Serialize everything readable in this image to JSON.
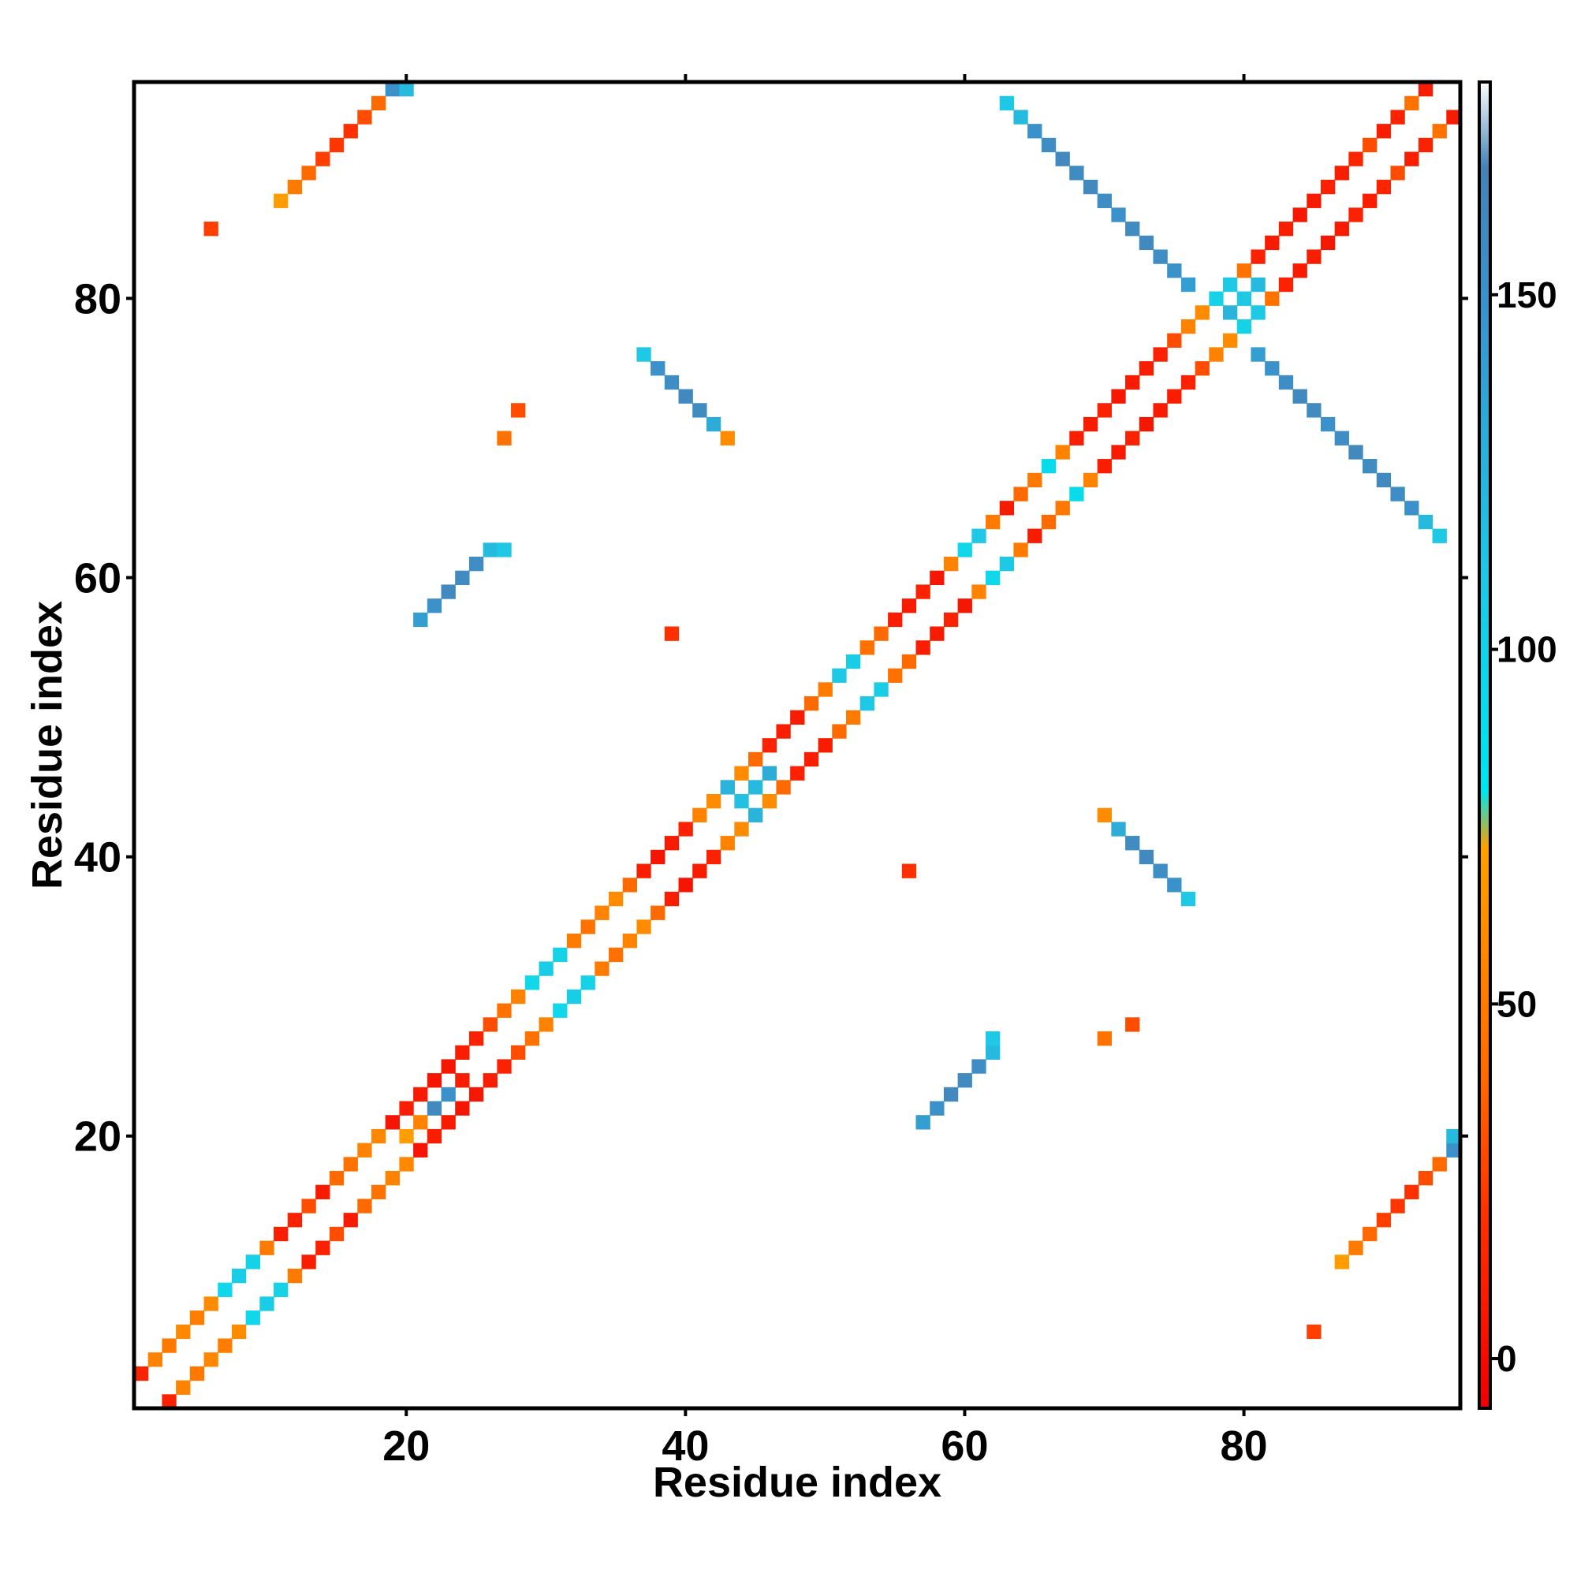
{
  "chart_data": {
    "type": "heatmap",
    "title": "",
    "xlabel": "Residue index",
    "ylabel": "Residue index",
    "xlim": [
      0.5,
      95.5
    ],
    "ylim": [
      0.5,
      95.5
    ],
    "x_ticks": [
      20,
      40,
      60,
      80
    ],
    "y_ticks": [
      20,
      40,
      60,
      80
    ],
    "colorbar": {
      "range": [
        -7,
        180
      ],
      "ticks": [
        0,
        50,
        100,
        150
      ],
      "stops": [
        {
          "value": -7,
          "color": "#ee0000"
        },
        {
          "value": 20,
          "color": "#ff3000"
        },
        {
          "value": 40,
          "color": "#ff6a00"
        },
        {
          "value": 72,
          "color": "#ffa000"
        },
        {
          "value": 80,
          "color": "#00e5ee"
        },
        {
          "value": 110,
          "color": "#1fc8e4"
        },
        {
          "value": 148,
          "color": "#3a93cc"
        },
        {
          "value": 168,
          "color": "#4682b4"
        },
        {
          "value": 180,
          "color": "#ffffff"
        }
      ]
    },
    "grid": false,
    "legend": "colorbar right",
    "cells": [
      [
        1,
        1,
        null
      ],
      [
        2,
        2,
        null
      ],
      [
        3,
        3,
        null
      ],
      [
        4,
        4,
        null
      ],
      [
        5,
        5,
        null
      ],
      [
        6,
        6,
        null
      ],
      [
        7,
        7,
        null
      ],
      [
        8,
        8,
        null
      ],
      [
        9,
        9,
        null
      ],
      [
        10,
        10,
        null
      ],
      [
        1,
        3,
        12
      ],
      [
        3,
        1,
        12
      ],
      [
        2,
        4,
        55
      ],
      [
        4,
        2,
        55
      ],
      [
        3,
        5,
        48
      ],
      [
        5,
        3,
        48
      ],
      [
        4,
        6,
        58
      ],
      [
        6,
        4,
        58
      ],
      [
        5,
        7,
        52
      ],
      [
        7,
        5,
        52
      ],
      [
        6,
        8,
        60
      ],
      [
        8,
        6,
        60
      ],
      [
        7,
        9,
        95
      ],
      [
        9,
        7,
        95
      ],
      [
        8,
        10,
        105
      ],
      [
        10,
        8,
        105
      ],
      [
        9,
        11,
        100
      ],
      [
        11,
        9,
        100
      ],
      [
        10,
        12,
        50
      ],
      [
        12,
        10,
        50
      ],
      [
        11,
        13,
        10
      ],
      [
        13,
        11,
        10
      ],
      [
        12,
        14,
        12
      ],
      [
        14,
        12,
        12
      ],
      [
        13,
        15,
        30
      ],
      [
        15,
        13,
        30
      ],
      [
        14,
        16,
        8
      ],
      [
        16,
        14,
        8
      ],
      [
        15,
        17,
        40
      ],
      [
        17,
        15,
        40
      ],
      [
        16,
        18,
        45
      ],
      [
        18,
        16,
        45
      ],
      [
        17,
        19,
        55
      ],
      [
        19,
        17,
        55
      ],
      [
        18,
        20,
        58
      ],
      [
        20,
        18,
        58
      ],
      [
        19,
        21,
        5
      ],
      [
        21,
        19,
        5
      ],
      [
        20,
        22,
        10
      ],
      [
        22,
        20,
        10
      ],
      [
        21,
        23,
        8
      ],
      [
        23,
        21,
        8
      ],
      [
        22,
        24,
        5
      ],
      [
        24,
        22,
        5
      ],
      [
        23,
        25,
        6
      ],
      [
        25,
        23,
        6
      ],
      [
        24,
        26,
        10
      ],
      [
        26,
        24,
        10
      ],
      [
        25,
        27,
        12
      ],
      [
        27,
        25,
        12
      ],
      [
        26,
        28,
        30
      ],
      [
        28,
        26,
        30
      ],
      [
        27,
        29,
        45
      ],
      [
        29,
        27,
        45
      ],
      [
        28,
        30,
        55
      ],
      [
        30,
        28,
        55
      ],
      [
        29,
        31,
        95
      ],
      [
        31,
        29,
        95
      ],
      [
        30,
        32,
        105
      ],
      [
        32,
        30,
        105
      ],
      [
        31,
        33,
        100
      ],
      [
        33,
        31,
        100
      ],
      [
        32,
        34,
        50
      ],
      [
        34,
        32,
        50
      ],
      [
        33,
        35,
        45
      ],
      [
        35,
        33,
        45
      ],
      [
        34,
        36,
        55
      ],
      [
        36,
        34,
        55
      ],
      [
        35,
        37,
        60
      ],
      [
        37,
        35,
        60
      ],
      [
        36,
        38,
        40
      ],
      [
        38,
        36,
        40
      ],
      [
        37,
        39,
        10
      ],
      [
        39,
        37,
        10
      ],
      [
        38,
        40,
        5
      ],
      [
        40,
        38,
        5
      ],
      [
        39,
        41,
        8
      ],
      [
        41,
        39,
        8
      ],
      [
        40,
        42,
        12
      ],
      [
        42,
        40,
        12
      ],
      [
        41,
        43,
        55
      ],
      [
        43,
        41,
        55
      ],
      [
        42,
        44,
        60
      ],
      [
        44,
        42,
        60
      ],
      [
        43,
        45,
        125
      ],
      [
        45,
        43,
        125
      ],
      [
        44,
        46,
        60
      ],
      [
        46,
        44,
        60
      ],
      [
        45,
        47,
        40
      ],
      [
        47,
        45,
        40
      ],
      [
        46,
        48,
        12
      ],
      [
        48,
        46,
        12
      ],
      [
        47,
        49,
        10
      ],
      [
        49,
        47,
        10
      ],
      [
        48,
        50,
        8
      ],
      [
        50,
        48,
        8
      ],
      [
        49,
        51,
        40
      ],
      [
        51,
        49,
        40
      ],
      [
        50,
        52,
        50
      ],
      [
        52,
        50,
        50
      ],
      [
        51,
        53,
        110
      ],
      [
        53,
        51,
        110
      ],
      [
        52,
        54,
        105
      ],
      [
        54,
        52,
        105
      ],
      [
        53,
        55,
        45
      ],
      [
        55,
        53,
        45
      ],
      [
        54,
        56,
        40
      ],
      [
        56,
        54,
        40
      ],
      [
        55,
        57,
        10
      ],
      [
        57,
        55,
        10
      ],
      [
        56,
        58,
        8
      ],
      [
        58,
        56,
        8
      ],
      [
        57,
        59,
        12
      ],
      [
        59,
        57,
        12
      ],
      [
        58,
        60,
        6
      ],
      [
        60,
        58,
        6
      ],
      [
        59,
        61,
        55
      ],
      [
        61,
        59,
        55
      ],
      [
        60,
        62,
        95
      ],
      [
        62,
        60,
        95
      ],
      [
        61,
        63,
        110
      ],
      [
        63,
        61,
        110
      ],
      [
        62,
        64,
        50
      ],
      [
        64,
        62,
        50
      ],
      [
        63,
        65,
        8
      ],
      [
        65,
        63,
        8
      ],
      [
        64,
        66,
        40
      ],
      [
        66,
        64,
        40
      ],
      [
        65,
        67,
        48
      ],
      [
        67,
        65,
        48
      ],
      [
        66,
        68,
        90
      ],
      [
        68,
        66,
        90
      ],
      [
        67,
        69,
        55
      ],
      [
        69,
        67,
        55
      ],
      [
        68,
        70,
        10
      ],
      [
        70,
        68,
        10
      ],
      [
        69,
        71,
        8
      ],
      [
        71,
        69,
        8
      ],
      [
        70,
        72,
        12
      ],
      [
        72,
        70,
        12
      ],
      [
        71,
        73,
        6
      ],
      [
        73,
        71,
        6
      ],
      [
        72,
        74,
        8
      ],
      [
        74,
        72,
        8
      ],
      [
        73,
        75,
        10
      ],
      [
        75,
        73,
        10
      ],
      [
        74,
        76,
        12
      ],
      [
        76,
        74,
        12
      ],
      [
        75,
        77,
        30
      ],
      [
        77,
        75,
        30
      ],
      [
        76,
        78,
        55
      ],
      [
        78,
        76,
        55
      ],
      [
        77,
        79,
        60
      ],
      [
        79,
        77,
        60
      ],
      [
        78,
        80,
        100
      ],
      [
        80,
        78,
        100
      ],
      [
        79,
        81,
        110
      ],
      [
        81,
        79,
        110
      ],
      [
        80,
        82,
        45
      ],
      [
        82,
        80,
        45
      ],
      [
        81,
        83,
        12
      ],
      [
        83,
        81,
        12
      ],
      [
        82,
        84,
        8
      ],
      [
        84,
        82,
        8
      ],
      [
        83,
        85,
        10
      ],
      [
        85,
        83,
        10
      ],
      [
        84,
        86,
        6
      ],
      [
        86,
        84,
        6
      ],
      [
        85,
        87,
        8
      ],
      [
        87,
        85,
        8
      ],
      [
        86,
        88,
        12
      ],
      [
        88,
        86,
        12
      ],
      [
        87,
        89,
        10
      ],
      [
        89,
        87,
        10
      ],
      [
        88,
        90,
        14
      ],
      [
        90,
        88,
        14
      ],
      [
        89,
        91,
        30
      ],
      [
        91,
        89,
        30
      ],
      [
        90,
        92,
        10
      ],
      [
        92,
        90,
        10
      ],
      [
        91,
        93,
        12
      ],
      [
        93,
        91,
        12
      ],
      [
        92,
        94,
        45
      ],
      [
        94,
        92,
        45
      ],
      [
        93,
        95,
        8
      ],
      [
        95,
        93,
        8
      ],
      [
        20,
        20,
        70
      ],
      [
        21,
        21,
        55
      ],
      [
        22,
        22,
        160
      ],
      [
        23,
        23,
        150
      ],
      [
        24,
        24,
        10
      ],
      [
        44,
        44,
        115
      ],
      [
        45,
        45,
        120
      ],
      [
        46,
        46,
        130
      ],
      [
        79,
        79,
        125
      ],
      [
        80,
        80,
        110
      ],
      [
        81,
        81,
        120
      ],
      [
        18,
        94,
        40
      ],
      [
        17,
        93,
        30
      ],
      [
        16,
        92,
        20
      ],
      [
        15,
        91,
        22
      ],
      [
        14,
        90,
        25
      ],
      [
        13,
        89,
        40
      ],
      [
        12,
        88,
        50
      ],
      [
        11,
        87,
        70
      ],
      [
        19,
        95,
        150
      ],
      [
        20,
        95,
        120
      ],
      [
        94,
        18,
        40
      ],
      [
        93,
        17,
        30
      ],
      [
        92,
        16,
        20
      ],
      [
        91,
        15,
        22
      ],
      [
        90,
        14,
        25
      ],
      [
        89,
        13,
        40
      ],
      [
        88,
        12,
        50
      ],
      [
        87,
        11,
        70
      ],
      [
        95,
        19,
        150
      ],
      [
        95,
        20,
        120
      ],
      [
        22,
        58,
        150
      ],
      [
        23,
        59,
        160
      ],
      [
        24,
        60,
        158
      ],
      [
        25,
        61,
        155
      ],
      [
        26,
        62,
        120
      ],
      [
        27,
        62,
        110
      ],
      [
        21,
        57,
        140
      ],
      [
        58,
        22,
        150
      ],
      [
        59,
        23,
        160
      ],
      [
        60,
        24,
        158
      ],
      [
        61,
        25,
        155
      ],
      [
        62,
        26,
        120
      ],
      [
        62,
        27,
        110
      ],
      [
        57,
        21,
        140
      ],
      [
        37,
        76,
        110
      ],
      [
        38,
        75,
        150
      ],
      [
        39,
        74,
        155
      ],
      [
        40,
        73,
        160
      ],
      [
        41,
        72,
        158
      ],
      [
        42,
        71,
        130
      ],
      [
        43,
        70,
        60
      ],
      [
        76,
        37,
        110
      ],
      [
        75,
        38,
        150
      ],
      [
        74,
        39,
        155
      ],
      [
        73,
        40,
        160
      ],
      [
        72,
        41,
        158
      ],
      [
        71,
        42,
        130
      ],
      [
        70,
        43,
        60
      ],
      [
        63,
        94,
        110
      ],
      [
        64,
        93,
        120
      ],
      [
        65,
        92,
        150
      ],
      [
        66,
        91,
        155
      ],
      [
        67,
        90,
        160
      ],
      [
        68,
        89,
        158
      ],
      [
        69,
        88,
        160
      ],
      [
        70,
        87,
        155
      ],
      [
        71,
        86,
        150
      ],
      [
        72,
        85,
        158
      ],
      [
        73,
        84,
        160
      ],
      [
        74,
        83,
        155
      ],
      [
        75,
        82,
        150
      ],
      [
        76,
        81,
        140
      ],
      [
        94,
        63,
        110
      ],
      [
        93,
        64,
        120
      ],
      [
        92,
        65,
        150
      ],
      [
        91,
        66,
        155
      ],
      [
        90,
        67,
        160
      ],
      [
        89,
        68,
        158
      ],
      [
        88,
        69,
        160
      ],
      [
        87,
        70,
        155
      ],
      [
        86,
        71,
        150
      ],
      [
        85,
        72,
        158
      ],
      [
        84,
        73,
        160
      ],
      [
        83,
        74,
        155
      ],
      [
        82,
        75,
        150
      ],
      [
        81,
        76,
        140
      ],
      [
        6,
        85,
        25
      ],
      [
        85,
        6,
        25
      ],
      [
        39,
        56,
        20
      ],
      [
        56,
        39,
        20
      ],
      [
        70,
        27,
        45
      ],
      [
        27,
        70,
        45
      ],
      [
        72,
        28,
        30
      ],
      [
        28,
        72,
        30
      ]
    ]
  }
}
